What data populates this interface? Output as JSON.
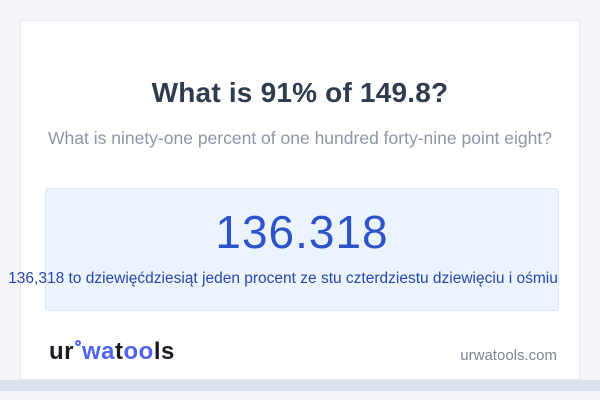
{
  "question": {
    "title": "What is 91% of 149.8?",
    "subtitle": "What is ninety-one percent of one hundred forty-nine point eight?"
  },
  "answer": {
    "value": "136.318",
    "sentence": "136,318 to dziewięćdziesiąt jeden procent ze stu czterdziestu dziewięciu i ośmiu"
  },
  "footer": {
    "logo": {
      "ur": "ur",
      "degree_icon": "degree-circle",
      "wa": "wa",
      "t": "t",
      "oo": "oo",
      "ls": "ls"
    },
    "site": "urwatools.com"
  },
  "colors": {
    "page_bg": "#f4f5f9",
    "card_bg": "#ffffff",
    "card_border": "#e4e6f1",
    "title_text": "#2f3c4e",
    "subtitle_text": "#8e96a4",
    "answer_box_bg": "#ebf3fc",
    "answer_box_border": "#d9e6f6",
    "answer_value": "#2d53cb",
    "answer_sentence": "#2946ab",
    "logo_dark": "#1a1a22",
    "logo_blue": "#5263ee",
    "domain_text": "#7d8694",
    "scrollbar_band": "#dbe1ee"
  }
}
